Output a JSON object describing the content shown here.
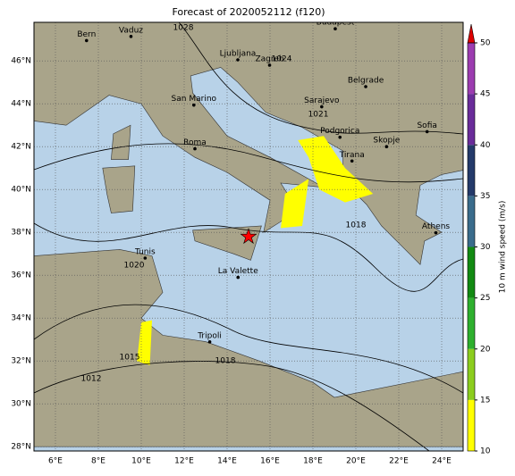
{
  "title": "Forecast of 2020052112 (f120)",
  "map": {
    "xlim": [
      5,
      25
    ],
    "ylim": [
      27.8,
      47.8
    ],
    "lon_ticks": [
      {
        "value": 6,
        "label": "6°E"
      },
      {
        "value": 8,
        "label": "8°E"
      },
      {
        "value": 10,
        "label": "10°E"
      },
      {
        "value": 12,
        "label": "12°E"
      },
      {
        "value": 14,
        "label": "14°E"
      },
      {
        "value": 16,
        "label": "16°E"
      },
      {
        "value": 18,
        "label": "18°E"
      },
      {
        "value": 20,
        "label": "20°E"
      },
      {
        "value": 22,
        "label": "22°E"
      },
      {
        "value": 24,
        "label": "24°E"
      }
    ],
    "lat_ticks": [
      {
        "value": 28,
        "label": "28°N"
      },
      {
        "value": 30,
        "label": "30°N"
      },
      {
        "value": 32,
        "label": "32°N"
      },
      {
        "value": 34,
        "label": "34°N"
      },
      {
        "value": 36,
        "label": "36°N"
      },
      {
        "value": 38,
        "label": "38°N"
      },
      {
        "value": 40,
        "label": "40°N"
      },
      {
        "value": 42,
        "label": "42°N"
      },
      {
        "value": 44,
        "label": "44°N"
      },
      {
        "value": 46,
        "label": "46°N"
      }
    ],
    "cities": [
      {
        "name": "Bern",
        "lon": 7.45,
        "lat": 46.95
      },
      {
        "name": "Vaduz",
        "lon": 9.52,
        "lat": 47.14
      },
      {
        "name": "Budapest",
        "lon": 19.04,
        "lat": 47.5
      },
      {
        "name": "Ljubljana",
        "lon": 14.5,
        "lat": 46.05
      },
      {
        "name": "Zagreb",
        "lon": 15.98,
        "lat": 45.8
      },
      {
        "name": "San Marino",
        "lon": 12.45,
        "lat": 43.94
      },
      {
        "name": "Belgrade",
        "lon": 20.46,
        "lat": 44.8
      },
      {
        "name": "Sarajevo",
        "lon": 18.41,
        "lat": 43.86
      },
      {
        "name": "Roma",
        "lon": 12.5,
        "lat": 41.9
      },
      {
        "name": "Podgorica",
        "lon": 19.26,
        "lat": 42.44
      },
      {
        "name": "Sofia",
        "lon": 23.32,
        "lat": 42.7
      },
      {
        "name": "Skopje",
        "lon": 21.43,
        "lat": 42.0
      },
      {
        "name": "Tirana",
        "lon": 19.82,
        "lat": 41.33
      },
      {
        "name": "Athens",
        "lon": 23.73,
        "lat": 37.98
      },
      {
        "name": "Tunis",
        "lon": 10.18,
        "lat": 36.8
      },
      {
        "name": "La Valette",
        "lon": 14.51,
        "lat": 35.9
      },
      {
        "name": "Tripoli",
        "lon": 13.19,
        "lat": 32.89
      }
    ],
    "marker": {
      "lon": 15,
      "lat": 37.8,
      "color": "#ff0000"
    }
  },
  "isobar_labels": [
    "1028",
    "1024",
    "1021",
    "1018",
    "1020",
    "1015",
    "1018",
    "1012"
  ],
  "colorbar": {
    "label": "10 m wind speed (m/s)",
    "lim": [
      10,
      50
    ],
    "ticks": [
      10,
      15,
      20,
      25,
      30,
      35,
      40,
      45,
      50
    ],
    "colors": [
      "#ffff00",
      "#8ccd1e",
      "#2eb02e",
      "#128a12",
      "#3a6c8c",
      "#243a6a",
      "#6a2c9a",
      "#9c3cb0"
    ],
    "extend_color": "#dd0000"
  }
}
